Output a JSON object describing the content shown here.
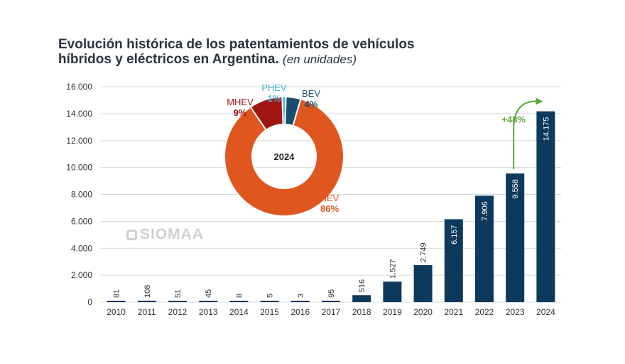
{
  "title": {
    "line1": "Evolución histórica de los patentamientos de vehículos",
    "line2": "híbridos y eléctricos en Argentina.",
    "subtitle": "(en unidades)"
  },
  "watermark": "SIOMAA",
  "colors": {
    "bar": "#0d3a5c",
    "hev": "#e0561f",
    "mhev": "#a11513",
    "phev": "#4ab0d2",
    "bev": "#184d72",
    "growth": "#5aa83a"
  },
  "chart_data": [
    {
      "type": "bar",
      "categories": [
        "2010",
        "2011",
        "2012",
        "2013",
        "2014",
        "2015",
        "2016",
        "2017",
        "2018",
        "2019",
        "2020",
        "2021",
        "2022",
        "2023",
        "2024"
      ],
      "values": [
        81,
        108,
        51,
        45,
        8,
        5,
        3,
        95,
        516,
        1527,
        2749,
        6157,
        7906,
        9558,
        14175
      ],
      "value_labels": [
        "81",
        "108",
        "51",
        "45",
        "8",
        "5",
        "3",
        "95",
        "516",
        "1.527",
        "2.749",
        "6.157",
        "7.906",
        "9.558",
        "14.175"
      ],
      "ylim": [
        0,
        16000
      ],
      "yticks": [
        0,
        2000,
        4000,
        6000,
        8000,
        10000,
        12000,
        14000,
        16000
      ],
      "ytick_labels": [
        "0",
        "2.000",
        "4.000",
        "6.000",
        "8.000",
        "10.000",
        "12.000",
        "14.000",
        "16.000"
      ],
      "grid": true,
      "annotation": {
        "text": "+48%",
        "from": "2023",
        "to": "2024"
      }
    },
    {
      "type": "pie",
      "center_label": "2024",
      "slices": [
        {
          "name": "HEV",
          "value": 86,
          "label": "86%"
        },
        {
          "name": "MHEV",
          "value": 9,
          "label": "9%"
        },
        {
          "name": "PHEV",
          "value": 1,
          "label": "1%"
        },
        {
          "name": "BEV",
          "value": 4,
          "label": "4%"
        }
      ]
    }
  ]
}
